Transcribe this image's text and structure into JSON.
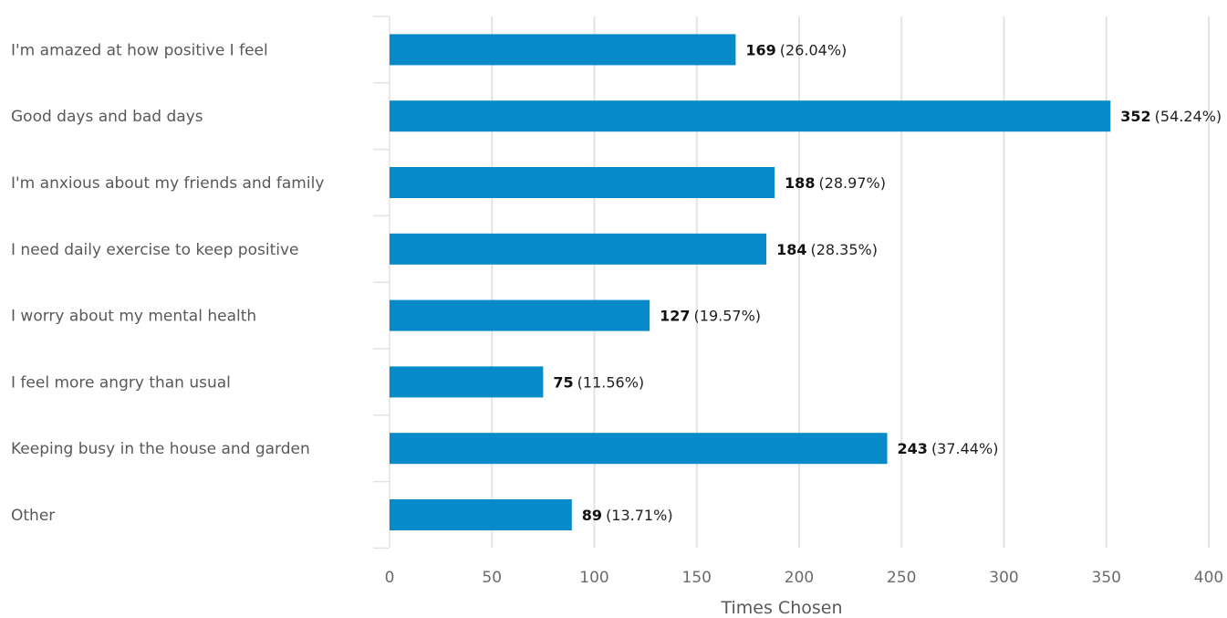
{
  "chart_data": {
    "type": "bar",
    "orientation": "horizontal",
    "categories": [
      "I'm amazed at how positive I feel",
      "Good days and bad days",
      "I'm anxious about my friends and family",
      "I need daily exercise to keep positive",
      "I worry about my mental health",
      "I feel more angry than usual",
      "Keeping busy in the house and garden",
      "Other"
    ],
    "values": [
      169,
      352,
      188,
      184,
      127,
      75,
      243,
      89
    ],
    "percent_labels": [
      "(26.04%)",
      "(54.24%)",
      "(28.97%)",
      "(28.35%)",
      "(19.57%)",
      "(11.56%)",
      "(37.44%)",
      "(13.71%)"
    ],
    "title": "",
    "xlabel": "Times Chosen",
    "ylabel": "",
    "xlim": [
      0,
      400
    ],
    "xticks": [
      0,
      50,
      100,
      150,
      200,
      250,
      300,
      350,
      400
    ],
    "grid": true,
    "bar_color": "#078ac9"
  }
}
